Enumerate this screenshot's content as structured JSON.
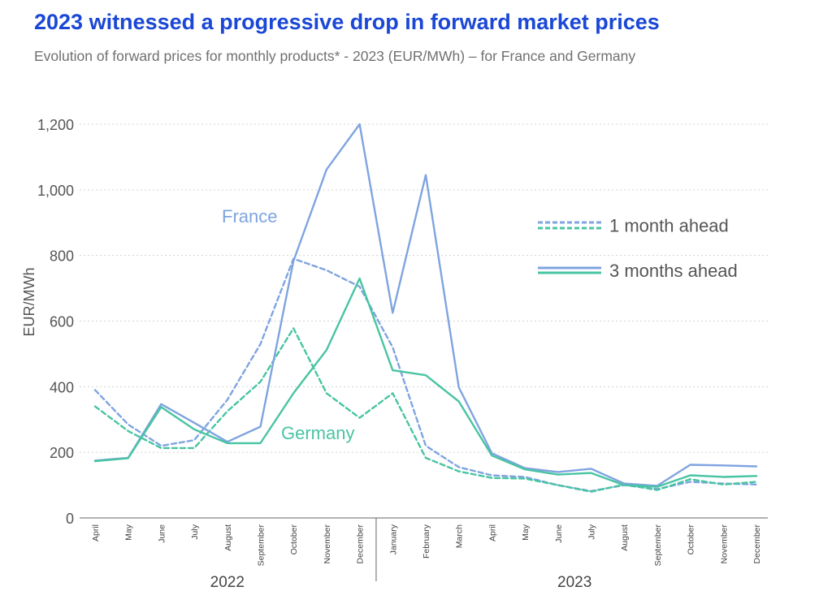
{
  "header": {
    "title": "2023 witnessed a progressive drop in forward market prices",
    "subtitle": "Evolution of forward prices for monthly products* - 2023 (EUR/MWh) – for France and Germany"
  },
  "colors": {
    "france": "#7fa4e0",
    "germany": "#48c4a2",
    "grid": "#d4d4d4",
    "axis": "#555555"
  },
  "chart_data": {
    "type": "line",
    "ylabel": "EUR/MWh",
    "ylim": [
      0,
      1200
    ],
    "yticks": [
      "0",
      "200",
      "400",
      "600",
      "800",
      "1,000",
      "1,200"
    ],
    "ytick_values": [
      0,
      200,
      400,
      600,
      800,
      1000,
      1200
    ],
    "categories": [
      "April",
      "May",
      "June",
      "July",
      "August",
      "September",
      "October",
      "November",
      "December",
      "January",
      "February",
      "March",
      "April",
      "May",
      "June",
      "July",
      "August",
      "September",
      "October",
      "November",
      "December"
    ],
    "year_groups": [
      {
        "label": "2022",
        "start": 0,
        "end": 8
      },
      {
        "label": "2023",
        "start": 9,
        "end": 20
      }
    ],
    "country_labels": [
      "France",
      "Germany"
    ],
    "legend": {
      "position": "top-right",
      "items": [
        "1 month ahead",
        "3 months ahead"
      ]
    },
    "grid": true,
    "series": [
      {
        "country": "France",
        "horizon": "1 month ahead",
        "style": "dashed",
        "values": [
          390,
          285,
          220,
          237,
          360,
          530,
          790,
          755,
          705,
          520,
          220,
          155,
          130,
          125,
          100,
          82,
          100,
          88,
          110,
          105,
          102
        ]
      },
      {
        "country": "Germany",
        "horizon": "1 month ahead",
        "style": "dashed",
        "values": [
          340,
          265,
          213,
          213,
          325,
          415,
          578,
          380,
          305,
          380,
          183,
          142,
          122,
          120,
          100,
          80,
          102,
          85,
          118,
          102,
          110
        ]
      },
      {
        "country": "France",
        "horizon": "3 months ahead",
        "style": "solid",
        "values": [
          175,
          183,
          347,
          290,
          232,
          278,
          783,
          1062,
          1200,
          625,
          1045,
          398,
          197,
          152,
          140,
          150,
          105,
          98,
          162,
          160,
          157
        ]
      },
      {
        "country": "Germany",
        "horizon": "3 months ahead",
        "style": "solid",
        "values": [
          173,
          182,
          338,
          270,
          228,
          228,
          380,
          512,
          730,
          450,
          435,
          355,
          190,
          148,
          132,
          137,
          100,
          95,
          130,
          125,
          128
        ]
      }
    ]
  }
}
